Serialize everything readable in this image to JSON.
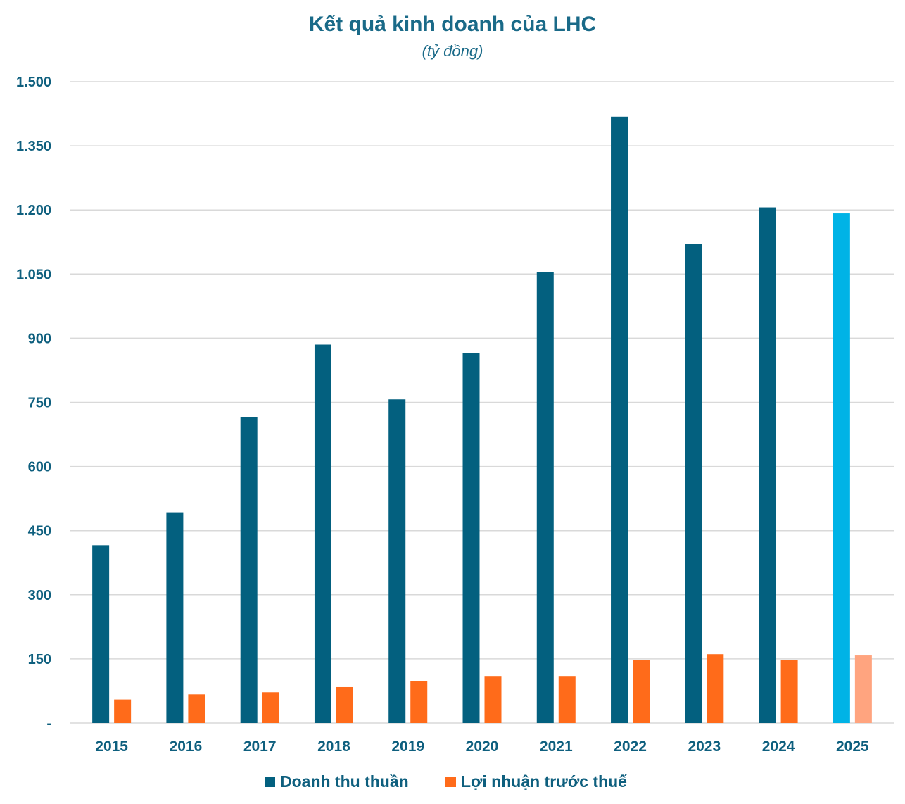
{
  "chart_data": {
    "type": "bar",
    "title": "Kết quả kinh doanh của LHC",
    "subtitle": "(tỷ đồng)",
    "categories": [
      "2015",
      "2016",
      "2017",
      "2018",
      "2019",
      "2020",
      "2021",
      "2022",
      "2023",
      "2024",
      "2025"
    ],
    "series": [
      {
        "name": "Doanh thu thuần",
        "color": "#03607f",
        "values": [
          416,
          493,
          715,
          885,
          757,
          865,
          1055,
          1418,
          1120,
          1206,
          1192
        ]
      },
      {
        "name": "Lợi nhuận trước thuế",
        "color": "#ff6b1a",
        "values": [
          55,
          67,
          72,
          84,
          98,
          110,
          110,
          148,
          161,
          147,
          158
        ]
      }
    ],
    "highlight": {
      "category": "2025",
      "colors": [
        "#00b3e6",
        "#ffa47f"
      ]
    },
    "yticks": [
      0,
      150,
      300,
      450,
      600,
      750,
      900,
      1050,
      1200,
      1350,
      1500
    ],
    "ytick_labels": [
      "-",
      "150",
      "300",
      "450",
      "600",
      "750",
      "900",
      "1.050",
      "1.200",
      "1.350",
      "1.500"
    ],
    "ylim": [
      0,
      1500
    ],
    "grid": true,
    "legend_position": "bottom-center"
  }
}
